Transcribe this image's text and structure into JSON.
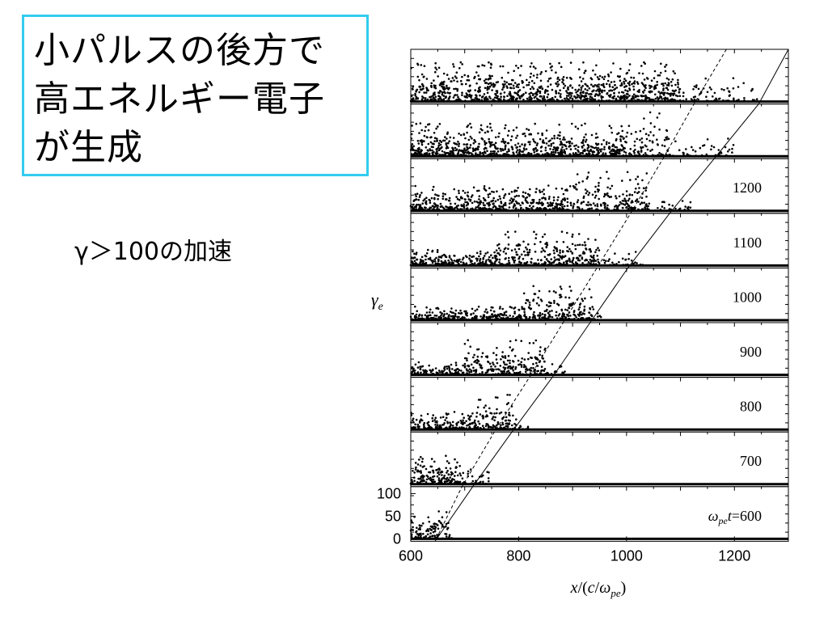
{
  "slide": {
    "title_lines": [
      "小パルスの後方で",
      "高エネルギー電子",
      "が生成"
    ],
    "note": "γ＞100の加速"
  },
  "chart_data": {
    "type": "scatter",
    "title": "",
    "xlabel_parts": [
      "x",
      "/(",
      "c",
      "/",
      "ω",
      "pe",
      ")"
    ],
    "ylabel_parts": [
      "γ",
      "e"
    ],
    "time_label_prefix_parts": [
      "ω",
      "pe",
      "t",
      "="
    ],
    "xlim": [
      600,
      1300
    ],
    "ylim": [
      0,
      110
    ],
    "x_ticks": [
      600,
      800,
      1000,
      1200
    ],
    "y_ticks": [
      0,
      50,
      100
    ],
    "panels": [
      {
        "time": null,
        "front_solid": 1285,
        "front_dashed": 1155,
        "segments": [
          [
            600,
            1100,
            62,
            0.6
          ],
          [
            1100,
            1250,
            38,
            0.12
          ]
        ]
      },
      {
        "time": null,
        "front_solid": 1205,
        "front_dashed": 1095,
        "segments": [
          [
            600,
            1000,
            52,
            0.55
          ],
          [
            1000,
            1080,
            70,
            0.3
          ],
          [
            1080,
            1200,
            30,
            0.1
          ]
        ]
      },
      {
        "time": 1200,
        "front_solid": 1120,
        "front_dashed": 1040,
        "segments": [
          [
            600,
            900,
            40,
            0.5
          ],
          [
            900,
            1040,
            62,
            0.4
          ],
          [
            1040,
            1120,
            22,
            0.1
          ]
        ]
      },
      {
        "time": 1100,
        "front_solid": 1040,
        "front_dashed": 975,
        "segments": [
          [
            600,
            760,
            25,
            0.4
          ],
          [
            760,
            950,
            55,
            0.45
          ],
          [
            950,
            1030,
            22,
            0.1
          ]
        ]
      },
      {
        "time": 1000,
        "front_solid": 965,
        "front_dashed": 915,
        "segments": [
          [
            600,
            800,
            22,
            0.4
          ],
          [
            800,
            940,
            55,
            0.45
          ],
          [
            940,
            960,
            15,
            0.1
          ]
        ]
      },
      {
        "time": 900,
        "front_solid": 900,
        "front_dashed": 850,
        "segments": [
          [
            600,
            700,
            20,
            0.3
          ],
          [
            700,
            850,
            55,
            0.45
          ],
          [
            850,
            895,
            18,
            0.1
          ]
        ]
      },
      {
        "time": 800,
        "front_solid": 825,
        "front_dashed": 790,
        "segments": [
          [
            600,
            720,
            28,
            0.4
          ],
          [
            720,
            790,
            55,
            0.45
          ],
          [
            790,
            820,
            20,
            0.1
          ]
        ]
      },
      {
        "time": 700,
        "front_solid": 750,
        "front_dashed": 720,
        "segments": [
          [
            600,
            690,
            45,
            0.5
          ],
          [
            690,
            745,
            30,
            0.2
          ]
        ]
      },
      {
        "time": 600,
        "front_solid": 680,
        "front_dashed": 670,
        "segments": [
          [
            600,
            650,
            35,
            0.5
          ],
          [
            650,
            670,
            55,
            0.35
          ],
          [
            670,
            680,
            10,
            0.1
          ]
        ]
      }
    ]
  }
}
